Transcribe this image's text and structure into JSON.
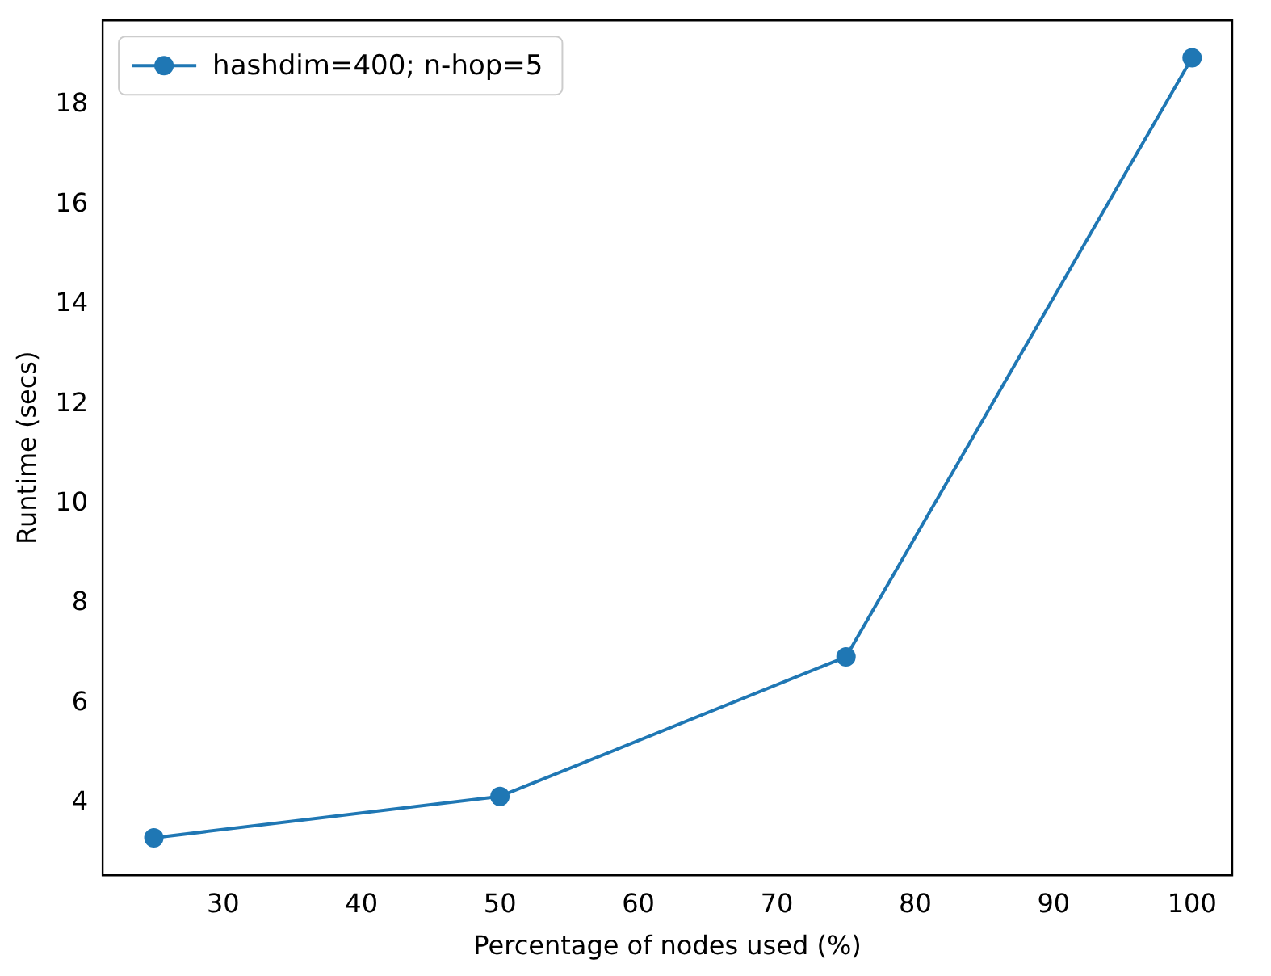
{
  "chart_data": {
    "type": "line",
    "xlabel": "Percentage of nodes used (%)",
    "ylabel": "Runtime (secs)",
    "x": [
      25,
      50,
      75,
      100
    ],
    "series": [
      {
        "name": "hashdim=400; n-hop=5",
        "color": "#1f77b4",
        "values": [
          3.3,
          4.13,
          6.93,
          18.95
        ]
      }
    ],
    "xlim": [
      21.3,
      102.9
    ],
    "xticks": [
      30,
      40,
      50,
      60,
      70,
      80,
      90,
      100
    ],
    "ylim": [
      2.55,
      19.7
    ],
    "yticks": [
      4,
      6,
      8,
      10,
      12,
      14,
      16,
      18
    ],
    "grid": false,
    "legend": "top left",
    "marker": "circle",
    "line_style": "solid"
  }
}
